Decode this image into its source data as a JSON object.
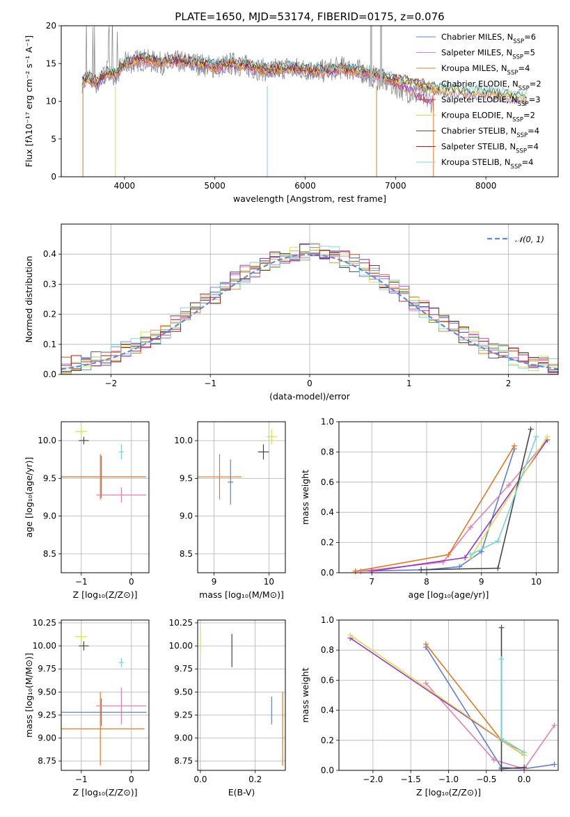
{
  "figure": {
    "title": "PLATE=1650, MJD=53174, FIBERID=0175, z=0.076"
  },
  "legend": [
    {
      "name": "Chabrier MILES, N",
      "sub": "SSP",
      "tail": "=6",
      "color": "#5b7fd6"
    },
    {
      "name": "Salpeter MILES, N",
      "sub": "SSP",
      "tail": "=5",
      "color": "#e37fb0"
    },
    {
      "name": "Kroupa MILES, N",
      "sub": "SSP",
      "tail": "=4",
      "color": "#c08a2a"
    },
    {
      "name": "Chabrier ELODIE, N",
      "sub": "SSP",
      "tail": "=2",
      "color": "#e6761f"
    },
    {
      "name": "Salpeter ELODIE, N",
      "sub": "SSP",
      "tail": "=3",
      "color": "#9b30c4"
    },
    {
      "name": "Kroupa ELODIE, N",
      "sub": "SSP",
      "tail": "=2",
      "color": "#d6e04a"
    },
    {
      "name": "Chabrier STELIB, N",
      "sub": "SSP",
      "tail": "=4",
      "color": "#444444"
    },
    {
      "name": "Salpeter STELIB, N",
      "sub": "SSP",
      "tail": "=4",
      "color": "#b01818"
    },
    {
      "name": "Kroupa STELIB, N",
      "sub": "SSP",
      "tail": "=4",
      "color": "#76d4d4"
    }
  ],
  "hist_legend": "𝒩(0, 1)",
  "chart_data": [
    {
      "id": "spectrum",
      "type": "line",
      "xlabel": "wavelength [Angstrom, rest frame]",
      "ylabel": "Flux [fλ10⁻¹⁷ erg cm⁻² s⁻¹ A⁻¹]",
      "xlim": [
        3300,
        8800
      ],
      "ylim": [
        0,
        20
      ],
      "xticks": [
        4000,
        5000,
        6000,
        7000,
        8000
      ],
      "yticks": [
        0,
        5,
        10,
        15,
        20
      ],
      "data_x": [
        3500,
        3600,
        3700,
        3800,
        3900,
        4000,
        4200,
        4400,
        4600,
        4800,
        5000,
        5200,
        5400,
        5600,
        5800,
        6000,
        6200,
        6400,
        6600,
        6800,
        7000,
        7200,
        7400
      ],
      "data_y": [
        12.5,
        13,
        12,
        14,
        13.5,
        15,
        15.5,
        15,
        15.2,
        15,
        14.5,
        15,
        14.5,
        14,
        14.5,
        14.2,
        14,
        14.5,
        14,
        13,
        12,
        11,
        10
      ],
      "model_x": [
        3500,
        3600,
        3700,
        3800,
        3900,
        4000,
        4200,
        4400,
        4600,
        4800,
        5000,
        5200,
        5400,
        5600,
        5800,
        6000,
        6200,
        6400,
        6600,
        6800,
        7000,
        7200,
        7400,
        7600,
        7800,
        8000,
        8200,
        8400
      ],
      "model_y": [
        12.5,
        13,
        12.5,
        13.8,
        13.5,
        15,
        15.6,
        15.2,
        15.3,
        15.1,
        14.6,
        15,
        14.6,
        14.1,
        14.4,
        14.2,
        14,
        14.3,
        14,
        13.5,
        12.8,
        12.3,
        11.8,
        11.5,
        11.3,
        11.1,
        10.8,
        10.5
      ]
    },
    {
      "id": "residuals",
      "type": "line",
      "xlabel": "(data-model)/error",
      "ylabel": "Normed distribution",
      "xlim": [
        -2.5,
        2.5
      ],
      "ylim": [
        0,
        0.5
      ],
      "xticks": [
        -2,
        -1,
        0,
        1,
        2
      ],
      "yticks": [
        0.0,
        0.1,
        0.2,
        0.3,
        0.4
      ],
      "series": [
        {
          "name": "𝒩(0, 1)",
          "mean": 0,
          "sigma": 1
        }
      ]
    },
    {
      "id": "age-vs-Z",
      "type": "scatter",
      "xlabel": "Z [log₁₀(Z/Z⊙)]",
      "ylabel": "age  [log₁₀(age/yr)]",
      "xlim": [
        -1.4,
        0.35
      ],
      "ylim": [
        8.25,
        10.25
      ],
      "xticks": [
        -1,
        0
      ],
      "yticks": [
        8.5,
        9.0,
        9.5,
        10.0
      ],
      "points": [
        {
          "x": -0.6,
          "y": 9.52,
          "xerr": 0.9,
          "yerr": 0.28,
          "color": "#5b7fd6"
        },
        {
          "x": -0.62,
          "y": 9.52,
          "xerr": 0.88,
          "yerr": 0.3,
          "color": "#e6761f"
        },
        {
          "x": -0.2,
          "y": 9.28,
          "xerr": 0.5,
          "yerr": 0.1,
          "color": "#e37fb0"
        },
        {
          "x": -1.0,
          "y": 10.12,
          "xerr": 0.12,
          "yerr": 0.05,
          "color": "#d6e04a"
        },
        {
          "x": -0.95,
          "y": 10.0,
          "xerr": 0.1,
          "yerr": 0.05,
          "color": "#444444"
        },
        {
          "x": -0.2,
          "y": 9.85,
          "xerr": 0.05,
          "yerr": 0.1,
          "color": "#76d4d4"
        }
      ]
    },
    {
      "id": "age-vs-mass",
      "type": "scatter",
      "xlabel": "mass [log₁₀(M/M⊙)]",
      "ylabel": "",
      "xlim": [
        8.7,
        10.3
      ],
      "ylim": [
        8.25,
        10.25
      ],
      "xticks": [
        9,
        10
      ],
      "yticks": [
        8.5,
        9.0,
        9.5,
        10.0
      ],
      "points": [
        {
          "x": 9.1,
          "y": 9.52,
          "xerr": 0.4,
          "yerr": 0.3,
          "color": "#e6761f"
        },
        {
          "x": 9.3,
          "y": 9.45,
          "xerr": 0.05,
          "yerr": 0.3,
          "color": "#5b7fd6"
        },
        {
          "x": 9.9,
          "y": 9.85,
          "xerr": 0.1,
          "yerr": 0.1,
          "color": "#444444"
        },
        {
          "x": 10.05,
          "y": 10.05,
          "xerr": 0.1,
          "yerr": 0.1,
          "color": "#d6e04a"
        }
      ]
    },
    {
      "id": "mass-weight-vs-age",
      "type": "line",
      "xlabel": "age  [log₁₀(age/yr)]",
      "ylabel": "mass weight",
      "xlim": [
        6.4,
        10.4
      ],
      "ylim": [
        0,
        1
      ],
      "xticks": [
        7,
        8,
        9,
        10
      ],
      "yticks": [
        0.0,
        0.2,
        0.4,
        0.6,
        0.8,
        1.0
      ],
      "series": [
        {
          "color": "#5b7fd6",
          "x": [
            6.7,
            8.0,
            8.6,
            9.0,
            9.6
          ],
          "y": [
            0.01,
            0.02,
            0.04,
            0.14,
            0.82
          ]
        },
        {
          "color": "#e37fb0",
          "x": [
            6.8,
            8.3,
            8.8,
            9.5,
            10.2
          ],
          "y": [
            0.01,
            0.07,
            0.3,
            0.58,
            0.88
          ]
        },
        {
          "color": "#e6761f",
          "x": [
            6.7,
            8.4,
            9.6
          ],
          "y": [
            0.01,
            0.12,
            0.84
          ]
        },
        {
          "color": "#9b30c4",
          "x": [
            7.0,
            8.7,
            10.2
          ],
          "y": [
            0.01,
            0.1,
            0.88
          ]
        },
        {
          "color": "#d6e04a",
          "x": [
            8.8,
            10.2
          ],
          "y": [
            0.1,
            0.9
          ]
        },
        {
          "color": "#444444",
          "x": [
            7.9,
            9.3,
            9.9
          ],
          "y": [
            0.02,
            0.03,
            0.95
          ]
        },
        {
          "color": "#76d4d4",
          "x": [
            8.8,
            9.3,
            10.0
          ],
          "y": [
            0.12,
            0.21,
            0.9
          ]
        }
      ]
    },
    {
      "id": "mass-vs-Z",
      "type": "scatter",
      "xlabel": "Z [log₁₀(Z/Z⊙)]",
      "ylabel": "mass [log₁₀(M/M⊙)]",
      "xlim": [
        -1.4,
        0.35
      ],
      "ylim": [
        8.65,
        10.28
      ],
      "xticks": [
        -1,
        0
      ],
      "yticks": [
        8.75,
        9.0,
        9.25,
        9.5,
        9.75,
        10.0,
        10.25
      ],
      "points": [
        {
          "x": -0.6,
          "y": 9.28,
          "xerr": 0.9,
          "yerr": 0.15,
          "color": "#5b7fd6"
        },
        {
          "x": -0.62,
          "y": 9.1,
          "xerr": 0.88,
          "yerr": 0.4,
          "color": "#e6761f"
        },
        {
          "x": -0.2,
          "y": 9.35,
          "xerr": 0.5,
          "yerr": 0.2,
          "color": "#e37fb0"
        },
        {
          "x": -1.0,
          "y": 10.1,
          "xerr": 0.12,
          "yerr": 0.05,
          "color": "#d6e04a"
        },
        {
          "x": -0.95,
          "y": 10.0,
          "xerr": 0.1,
          "yerr": 0.05,
          "color": "#444444"
        },
        {
          "x": -0.2,
          "y": 9.82,
          "xerr": 0.05,
          "yerr": 0.05,
          "color": "#76d4d4"
        }
      ]
    },
    {
      "id": "mass-vs-EBV",
      "type": "scatter",
      "xlabel": "E(B-V)",
      "ylabel": "",
      "xlim": [
        -0.01,
        0.31
      ],
      "ylim": [
        8.65,
        10.28
      ],
      "xticks": [
        0.0,
        0.2
      ],
      "yticks": [
        8.75,
        9.0,
        9.25,
        9.5,
        9.75,
        10.0,
        10.25
      ],
      "points": [
        {
          "x": 0.0,
          "y": 10.05,
          "xerr": 0,
          "yerr": 0.12,
          "color": "#d6e04a"
        },
        {
          "x": 0.115,
          "y": 9.95,
          "xerr": 0,
          "yerr": 0.18,
          "color": "#444444"
        },
        {
          "x": 0.26,
          "y": 9.3,
          "xerr": 0,
          "yerr": 0.15,
          "color": "#5b7fd6"
        },
        {
          "x": 0.3,
          "y": 9.1,
          "xerr": 0,
          "yerr": 0.4,
          "color": "#e6761f"
        }
      ]
    },
    {
      "id": "mass-weight-vs-Z",
      "type": "line",
      "xlabel": "Z [log₁₀(Z/Z⊙)]",
      "ylabel": "mass weight",
      "xlim": [
        -2.45,
        0.45
      ],
      "ylim": [
        0,
        1
      ],
      "xticks": [
        -2.0,
        -1.5,
        -1.0,
        -0.5,
        0.0
      ],
      "yticks": [
        0.0,
        0.2,
        0.4,
        0.6,
        0.8,
        1.0
      ],
      "series": [
        {
          "color": "#5b7fd6",
          "x": [
            -1.3,
            -0.3,
            0.0,
            0.4
          ],
          "y": [
            0.82,
            0.02,
            0.01,
            0.04
          ]
        },
        {
          "color": "#e37fb0",
          "x": [
            -1.3,
            -0.4,
            0.0,
            0.4
          ],
          "y": [
            0.58,
            0.07,
            0.01,
            0.3
          ]
        },
        {
          "color": "#e6761f",
          "x": [
            -1.3,
            -0.3,
            0.0
          ],
          "y": [
            0.84,
            0.2,
            0.12
          ]
        },
        {
          "color": "#9b30c4",
          "x": [
            -2.3,
            0.0
          ],
          "y": [
            0.88,
            0.1
          ]
        },
        {
          "color": "#d6e04a",
          "x": [
            -2.3,
            0.0
          ],
          "y": [
            0.9,
            0.1
          ]
        },
        {
          "color": "#444444",
          "x": [
            -0.3,
            -0.3,
            0.0
          ],
          "y": [
            0.95,
            0.01,
            0.02
          ]
        },
        {
          "color": "#76d4d4",
          "x": [
            -0.3,
            -0.3,
            0.0
          ],
          "y": [
            0.74,
            0.21,
            0.12
          ]
        }
      ]
    }
  ]
}
